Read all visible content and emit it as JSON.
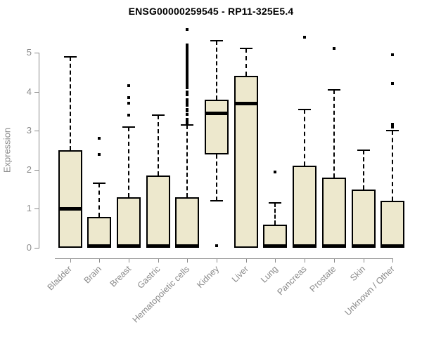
{
  "window": {
    "background": "#ffffff"
  },
  "chart_data": {
    "type": "boxplot",
    "title": "ENSG00000259545 - RP11-325E5.4",
    "xlabel": "",
    "ylabel": "Expression",
    "ylim": [
      0,
      5.7
    ],
    "yticks": [
      0,
      1,
      2,
      3,
      4,
      5
    ],
    "grid": false,
    "legend": false,
    "categories": [
      "Bladder",
      "Brain",
      "Breast",
      "Gastric",
      "Hematopoietic cells",
      "Kidney",
      "Liver",
      "Lung",
      "Pancreas",
      "Prostate",
      "Skin",
      "Unknown / Other"
    ],
    "boxes": [
      {
        "category": "Bladder",
        "whisker_low": 0,
        "q1": 0,
        "median": 1.0,
        "q3": 2.5,
        "whisker_high": 4.9,
        "outliers": []
      },
      {
        "category": "Brain",
        "whisker_low": 0,
        "q1": 0,
        "median": 0.05,
        "q3": 0.8,
        "whisker_high": 1.65,
        "outliers": [
          2.4,
          2.8
        ]
      },
      {
        "category": "Breast",
        "whisker_low": 0,
        "q1": 0,
        "median": 0.05,
        "q3": 1.3,
        "whisker_high": 3.1,
        "outliers": [
          3.4,
          3.7,
          3.85,
          4.15
        ]
      },
      {
        "category": "Gastric",
        "whisker_low": 0,
        "q1": 0,
        "median": 0.05,
        "q3": 1.85,
        "whisker_high": 3.4,
        "outliers": []
      },
      {
        "category": "Hematopoietic cells",
        "whisker_low": 0,
        "q1": 0,
        "median": 0.05,
        "q3": 1.3,
        "whisker_high": 3.15,
        "outliers": [
          3.2,
          3.25,
          3.3,
          3.42,
          3.5,
          3.55,
          3.65,
          3.72,
          3.8,
          3.92,
          4.0,
          4.1,
          4.18,
          4.25,
          4.3,
          4.35,
          4.4,
          4.45,
          4.5,
          4.55,
          4.6,
          4.65,
          4.7,
          4.74,
          4.78,
          4.83,
          4.87,
          4.91,
          4.95,
          5.0,
          5.05,
          5.1,
          5.15,
          5.2,
          5.6
        ]
      },
      {
        "category": "Kidney",
        "whisker_low": 1.2,
        "q1": 2.4,
        "median": 3.45,
        "q3": 3.8,
        "whisker_high": 5.3,
        "outliers": [
          0.05
        ]
      },
      {
        "category": "Liver",
        "whisker_low": 0,
        "q1": 0,
        "median": 3.7,
        "q3": 4.4,
        "whisker_high": 5.1,
        "outliers": []
      },
      {
        "category": "Lung",
        "whisker_low": 0,
        "q1": 0,
        "median": 0.05,
        "q3": 0.6,
        "whisker_high": 1.15,
        "outliers": [
          1.95
        ]
      },
      {
        "category": "Pancreas",
        "whisker_low": 0,
        "q1": 0,
        "median": 0.05,
        "q3": 2.1,
        "whisker_high": 3.55,
        "outliers": [
          5.4
        ]
      },
      {
        "category": "Prostate",
        "whisker_low": 0,
        "q1": 0,
        "median": 0.05,
        "q3": 1.8,
        "whisker_high": 4.05,
        "outliers": [
          5.1
        ]
      },
      {
        "category": "Skin",
        "whisker_low": 0,
        "q1": 0,
        "median": 0.05,
        "q3": 1.5,
        "whisker_high": 2.5,
        "outliers": []
      },
      {
        "category": "Unknown / Other",
        "whisker_low": 0,
        "q1": 0,
        "median": 0.05,
        "q3": 1.2,
        "whisker_high": 3.0,
        "outliers": [
          3.1,
          3.16,
          4.2,
          4.95
        ]
      }
    ],
    "colors": {
      "box_fill": "#EDE8CD",
      "box_border": "#000000",
      "median": "#000000",
      "whisker": "#000000",
      "outlier": "#000000",
      "axis": "#8a8a8a",
      "tick_label": "#8a8a8a",
      "title": "#000000"
    }
  }
}
